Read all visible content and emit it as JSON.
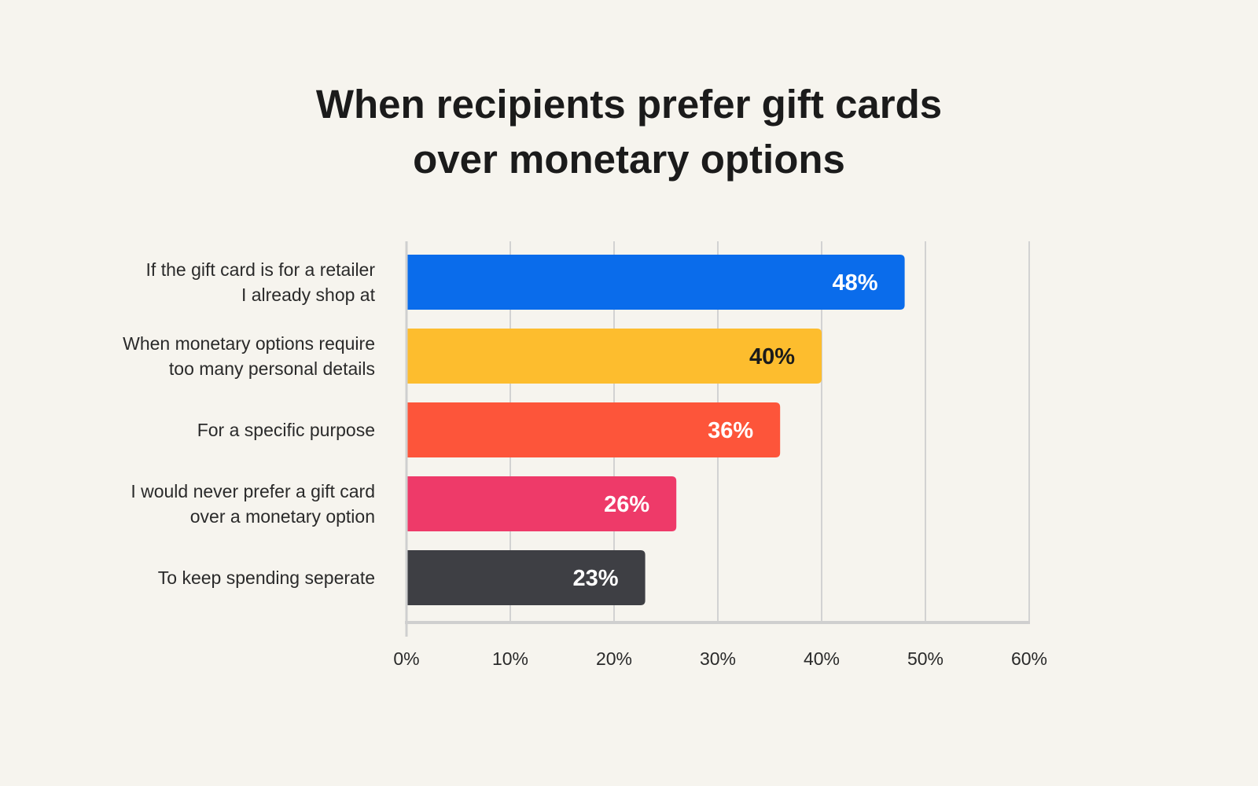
{
  "title": {
    "line1": "When recipients prefer gift cards",
    "line2": "over monetary options"
  },
  "chart_data": {
    "type": "bar",
    "orientation": "horizontal",
    "categories": [
      [
        "If the gift card is for a retailer",
        "I already shop at"
      ],
      [
        "When monetary options require",
        "too many personal details"
      ],
      [
        "For a specific purpose"
      ],
      [
        "I would never prefer a gift card",
        "over a monetary option"
      ],
      [
        "To keep spending seperate"
      ]
    ],
    "values": [
      48,
      40,
      36,
      26,
      23
    ],
    "value_labels": [
      "48%",
      "40%",
      "36%",
      "26%",
      "23%"
    ],
    "bar_colors": [
      "#0a6ceb",
      "#fdbd2e",
      "#fd553a",
      "#ee3a69",
      "#3e3f44"
    ],
    "value_label_colors": [
      "#ffffff",
      "#1b1b1b",
      "#ffffff",
      "#ffffff",
      "#ffffff"
    ],
    "xlim": [
      0,
      60
    ],
    "xticks": [
      0,
      10,
      20,
      30,
      40,
      50,
      60
    ],
    "xtick_labels": [
      "0%",
      "10%",
      "20%",
      "30%",
      "40%",
      "50%",
      "60%"
    ],
    "grid": true,
    "legend": "none"
  }
}
